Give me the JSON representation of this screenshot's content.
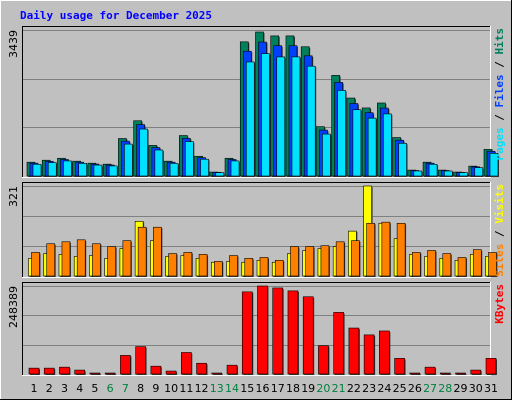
{
  "title": "Daily usage for December 2025",
  "categories": [
    "1",
    "2",
    "3",
    "4",
    "5",
    "6",
    "7",
    "8",
    "9",
    "10",
    "11",
    "12",
    "13",
    "14",
    "15",
    "16",
    "17",
    "18",
    "19",
    "20",
    "21",
    "22",
    "23",
    "24",
    "25",
    "26",
    "27",
    "28",
    "29",
    "30",
    "31"
  ],
  "category_colors": [
    "#000000",
    "#000000",
    "#000000",
    "#000000",
    "#000000",
    "#008040",
    "#008040",
    "#000000",
    "#000000",
    "#000000",
    "#000000",
    "#000000",
    "#008040",
    "#008040",
    "#000000",
    "#000000",
    "#000000",
    "#000000",
    "#000000",
    "#008040",
    "#008040",
    "#000000",
    "#000000",
    "#000000",
    "#000000",
    "#000000",
    "#008040",
    "#008040",
    "#000000",
    "#000000",
    "#000000"
  ],
  "legend_separator": " / ",
  "chart_data": [
    {
      "type": "bar",
      "ylim": [
        0,
        3439
      ],
      "yticks": [
        3439
      ],
      "series": [
        {
          "name": "Hits",
          "color": "#00805c",
          "values": [
            325,
            372,
            418,
            349,
            302,
            279,
            883,
            1301,
            720,
            349,
            953,
            465,
            93,
            418,
            3160,
            3392,
            3300,
            3300,
            3044,
            1162,
            2370,
            1836,
            1603,
            1720,
            906,
            139,
            325,
            139,
            93,
            232,
            627
          ]
        },
        {
          "name": "Files",
          "color": "#0040ff",
          "values": [
            302,
            346,
            389,
            325,
            281,
            259,
            821,
            1210,
            670,
            325,
            886,
            432,
            86,
            389,
            2939,
            3155,
            3069,
            3069,
            2831,
            1081,
            2204,
            1707,
            1491,
            1600,
            843,
            129,
            302,
            129,
            86,
            216,
            583
          ]
        },
        {
          "name": "Pages",
          "color": "#00e0ff",
          "values": [
            276,
            316,
            355,
            297,
            257,
            237,
            751,
            1106,
            612,
            297,
            810,
            395,
            79,
            355,
            2686,
            2883,
            2805,
            2805,
            2587,
            988,
            2015,
            1561,
            1363,
            1462,
            770,
            118,
            276,
            118,
            79,
            197,
            533
          ]
        }
      ]
    },
    {
      "type": "bar",
      "ylim": [
        0,
        321
      ],
      "yticks": [
        321
      ],
      "series": [
        {
          "name": "Visits",
          "color": "#ffff00",
          "values": [
            63,
            80,
            77,
            70,
            73,
            63,
            98,
            195,
            126,
            70,
            73,
            63,
            49,
            52,
            49,
            56,
            49,
            80,
            91,
            98,
            105,
            160,
            321,
            188,
            133,
            77,
            70,
            63,
            56,
            77,
            70
          ]
        },
        {
          "name": "Sites",
          "color": "#ff8000",
          "values": [
            84,
            115,
            122,
            129,
            115,
            105,
            126,
            174,
            174,
            80,
            84,
            77,
            52,
            73,
            63,
            66,
            56,
            105,
            105,
            108,
            122,
            126,
            188,
            192,
            188,
            84,
            91,
            80,
            66,
            94,
            84
          ]
        }
      ]
    },
    {
      "type": "bar",
      "ylim": [
        0,
        248389
      ],
      "yticks": [
        248389
      ],
      "series": [
        {
          "name": "KBytes",
          "color": "#ff0000",
          "values": [
            16559,
            16559,
            19319,
            11039,
            2760,
            2760,
            52437,
            77277,
            22079,
            8280,
            60717,
            30359,
            2760,
            24839,
            231830,
            248389,
            242870,
            234590,
            218030,
            80037,
            173872,
            129714,
            110395,
            121434,
            44158,
            2760,
            19319,
            2760,
            2760,
            11039,
            44158
          ]
        }
      ]
    }
  ]
}
